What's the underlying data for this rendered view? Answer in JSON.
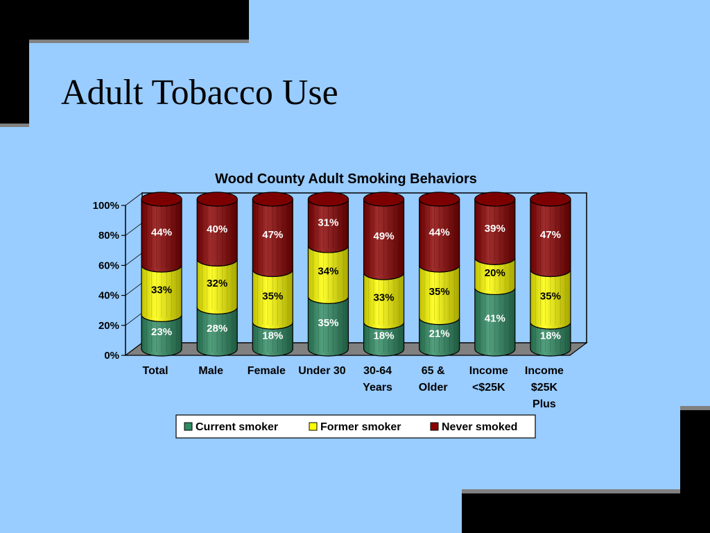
{
  "slide": {
    "title": "Adult Tobacco Use"
  },
  "colors": {
    "background": "#99ccff",
    "decoration": "#000000",
    "decoration_shadow": "#808080",
    "current": "#2e8b63",
    "former": "#ffff00",
    "never": "#8b0000"
  },
  "chart_data": {
    "type": "bar",
    "stacked": true,
    "title": "Wood County Adult Smoking Behaviors",
    "xlabel": "",
    "ylabel": "",
    "ylim": [
      0,
      100
    ],
    "y_ticks": [
      "0%",
      "20%",
      "40%",
      "60%",
      "80%",
      "100%"
    ],
    "categories": [
      [
        "Total"
      ],
      [
        "Male"
      ],
      [
        "Female"
      ],
      [
        "Under 30"
      ],
      [
        "30-64",
        "Years"
      ],
      [
        "65 &",
        "Older"
      ],
      [
        "Income",
        "<$25K"
      ],
      [
        "Income",
        "$25K",
        "Plus"
      ]
    ],
    "series": [
      {
        "name": "Current smoker",
        "values": [
          23,
          28,
          18,
          35,
          18,
          21,
          41,
          18
        ]
      },
      {
        "name": "Former smoker",
        "values": [
          33,
          32,
          35,
          34,
          33,
          35,
          20,
          35
        ]
      },
      {
        "name": "Never smoked",
        "values": [
          44,
          40,
          47,
          31,
          49,
          44,
          39,
          47
        ]
      }
    ],
    "value_format": "{v}%",
    "grid": false,
    "legend": "bottom"
  }
}
